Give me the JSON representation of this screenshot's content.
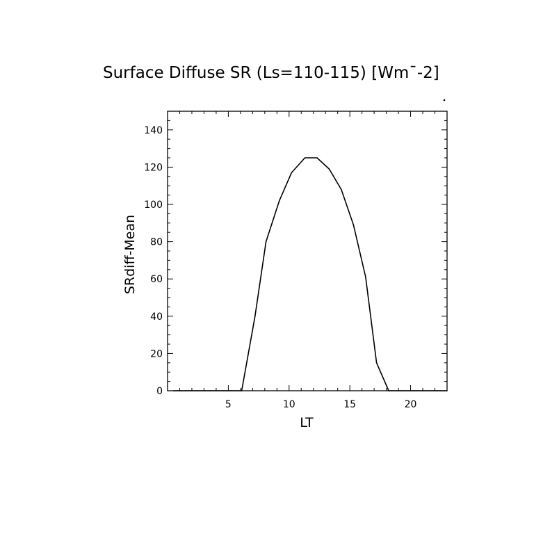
{
  "chart_data": {
    "type": "line",
    "title": "Surface Diffuse SR (Ls=110-115) [Wm¯-2]",
    "xlabel": "LT",
    "ylabel": "SRdiff-Mean",
    "xlim": [
      0,
      23
    ],
    "ylim": [
      0,
      150
    ],
    "x_ticks": [
      5,
      10,
      15,
      20
    ],
    "y_ticks": [
      0,
      20,
      40,
      60,
      80,
      100,
      120,
      140
    ],
    "grid": false,
    "legend": "none",
    "series": [
      {
        "color": "#000000",
        "x": [
          0.5,
          1.5,
          2.5,
          3.5,
          4.5,
          5.5,
          6.1,
          7.2,
          8.1,
          9.2,
          10.2,
          11.3,
          12.3,
          13.3,
          14.3,
          15.3,
          16.3,
          17.2,
          18.2,
          19.2,
          20.2,
          21.2,
          22.2,
          23.0
        ],
        "y": [
          0,
          0,
          0,
          0,
          0,
          0,
          0,
          40,
          80,
          102,
          117,
          125,
          125,
          119,
          108,
          89,
          61,
          15,
          0,
          0,
          0,
          0,
          0,
          0
        ]
      }
    ]
  }
}
